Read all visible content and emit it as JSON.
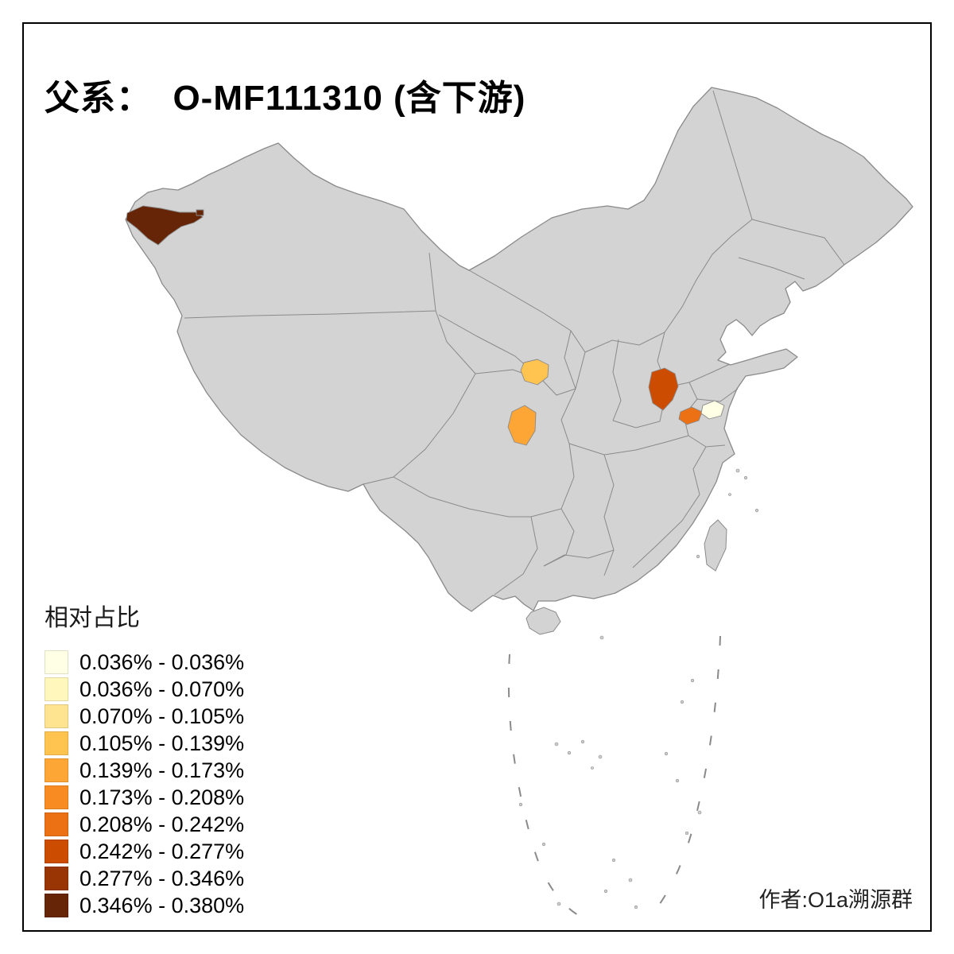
{
  "title": "父系：  O-MF111310 (含下游)",
  "credit": "作者:O1a溯源群",
  "legend": {
    "title": "相对占比",
    "classes": [
      {
        "label": "0.036% - 0.036%",
        "color": "#FFFFE5"
      },
      {
        "label": "0.036% - 0.070%",
        "color": "#FFF7BC"
      },
      {
        "label": "0.070% - 0.105%",
        "color": "#FEE391"
      },
      {
        "label": "0.105% - 0.139%",
        "color": "#FEC44F"
      },
      {
        "label": "0.139% - 0.173%",
        "color": "#FEA635"
      },
      {
        "label": "0.173% - 0.208%",
        "color": "#F88B22"
      },
      {
        "label": "0.208% - 0.242%",
        "color": "#EC7014"
      },
      {
        "label": "0.242% - 0.277%",
        "color": "#CC4C02"
      },
      {
        "label": "0.277% - 0.346%",
        "color": "#993404"
      },
      {
        "label": "0.346% - 0.380%",
        "color": "#662506"
      }
    ]
  },
  "map": {
    "land_color": "#D3D3D3",
    "border_color": "#8A8A8A",
    "island_color": "#CFCFCF",
    "dash_color": "#8A8A8A",
    "regions": [
      {
        "id": "west-xinjiang",
        "color": "#662506",
        "class_label": "0.346% - 0.380%"
      },
      {
        "id": "southeast-gansu",
        "color": "#FEC44F",
        "class_label": "0.105% - 0.139%"
      },
      {
        "id": "north-sichuan",
        "color": "#FEA635",
        "class_label": "0.139% - 0.173%"
      },
      {
        "id": "east-henan",
        "color": "#CC4C02",
        "class_label": "0.242% - 0.277%"
      },
      {
        "id": "east-anhui",
        "color": "#EC7014",
        "class_label": "0.208% - 0.242%"
      },
      {
        "id": "central-jiangsu",
        "color": "#FFFFE5",
        "class_label": "0.036% - 0.036%"
      }
    ]
  }
}
